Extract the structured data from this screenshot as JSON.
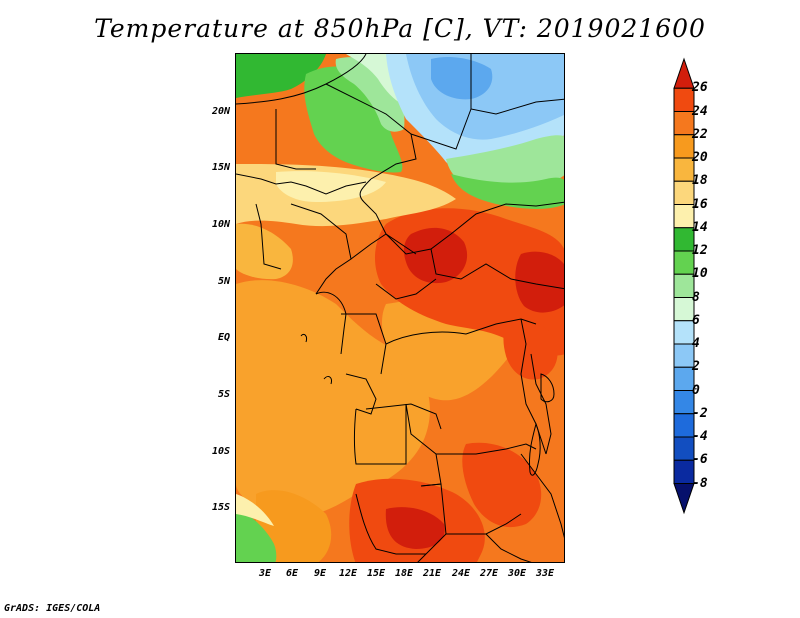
{
  "title": "Temperature at 850hPa [C], VT: 2019021600",
  "footer": "GrADS: IGES/COLA",
  "latitude_labels": [
    "20N",
    "15N",
    "10N",
    "5N",
    "EQ",
    "5S",
    "10S",
    "15S"
  ],
  "longitude_labels": [
    "3E",
    "6E",
    "9E",
    "12E",
    "15E",
    "18E",
    "21E",
    "24E",
    "27E",
    "30E",
    "33E"
  ],
  "colorbar": {
    "labels": [
      "26",
      "24",
      "22",
      "20",
      "18",
      "16",
      "14",
      "12",
      "10",
      "8",
      "6",
      "4",
      "2",
      "0",
      "-2",
      "-4",
      "-6",
      "-8"
    ],
    "colors": [
      "#d21e0c",
      "#f04a10",
      "#f5781e",
      "#f79a1e",
      "#f9b63e",
      "#fcd77c",
      "#fdf0ad",
      "#31b832",
      "#63d250",
      "#9ee69a",
      "#d6f8d6",
      "#b4e2fa",
      "#8cc8f6",
      "#5ca8ee",
      "#3487e6",
      "#1e6bdc",
      "#124ec0",
      "#0a2aa0",
      "#06106c"
    ]
  },
  "colors": {
    "background": "#ffffff",
    "border": "#000000",
    "boundaries": "#000000"
  }
}
